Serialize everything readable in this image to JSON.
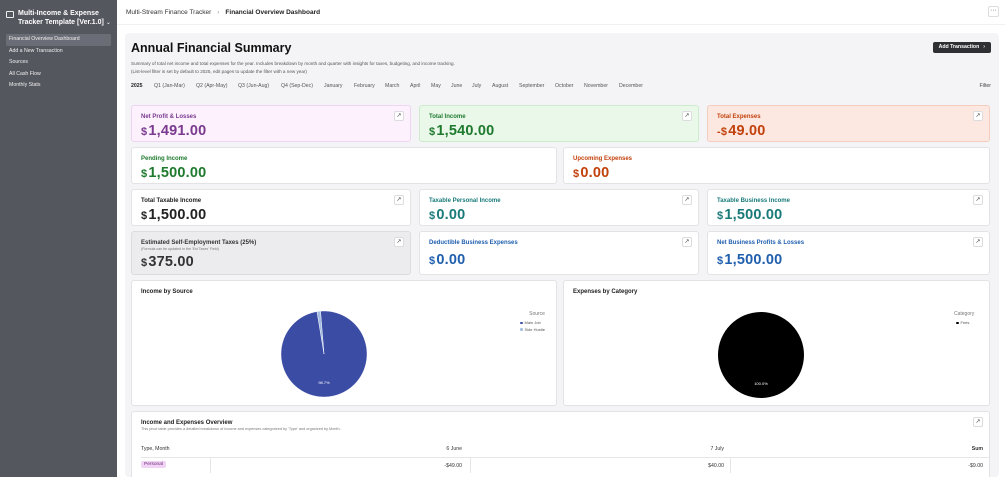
{
  "sidebar": {
    "workspace_title": "Multi-Income & Expense Tracker Template [Ver.1.0]",
    "chevron": "⌄",
    "items": [
      {
        "label": "Financial Overview Dashboard",
        "active": true
      },
      {
        "label": "Add a New Transaction",
        "active": false
      },
      {
        "label": "Sources",
        "active": false
      },
      {
        "label": "All Cash Flow",
        "active": false
      },
      {
        "label": "Monthly Stats",
        "active": false
      }
    ]
  },
  "topbar": {
    "breadcrumb_parent": "Multi-Stream Finance Tracker",
    "breadcrumb_sep": "›",
    "breadcrumb_current": "Financial Overview Dashboard",
    "more_icon": "···"
  },
  "page": {
    "title": "Annual Financial Summary",
    "add_button": "Add Transaction",
    "add_button_arrow": "›",
    "description": "Summary of total net income and total expenses for the year. Includes breakdown by month and quarter with insights for taxes, budgeting, and income tracking.",
    "note": "(List-level filter is set by default to 2025, edit pages to update the filter with a new year)"
  },
  "filters": {
    "items": [
      "2025",
      "Q1 (Jan-Mar)",
      "Q2 (Apr-May)",
      "Q3 (Jun-Aug)",
      "Q4 (Sep-Dec)",
      "January",
      "February",
      "March",
      "April",
      "May",
      "June",
      "July",
      "August",
      "September",
      "October",
      "November",
      "December"
    ],
    "active_index": 0,
    "filter_label": "Filter"
  },
  "metrics": {
    "net_profit": {
      "label": "Net Profit & Losses",
      "prefix": "$",
      "value": "1,491.00",
      "color": "#7b3a8f"
    },
    "total_income": {
      "label": "Total Income",
      "prefix": "$",
      "value": "1,540.00",
      "color": "#1e7a2e"
    },
    "total_expenses": {
      "label": "Total Expenses",
      "prefix": "-$",
      "value": "49.00",
      "color": "#c2410c"
    },
    "pending_income": {
      "label": "Pending Income",
      "prefix": "$",
      "value": "1,500.00",
      "color": "#1e7a2e"
    },
    "upcoming_expenses": {
      "label": "Upcoming Expenses",
      "prefix": "$",
      "value": "0.00",
      "color": "#c2410c"
    },
    "total_taxable": {
      "label": "Total Taxable Income",
      "prefix": "$",
      "value": "1,500.00",
      "color": "#222222"
    },
    "taxable_personal": {
      "label": "Taxable Personal Income",
      "prefix": "$",
      "value": "0.00",
      "color": "#1a7a7a"
    },
    "taxable_business": {
      "label": "Taxable Business Income",
      "prefix": "$",
      "value": "1,500.00",
      "color": "#1a7a7a"
    },
    "self_employment_tax": {
      "label": "Estimated Self-Employment Taxes (25%)",
      "sublabel": "(Formula can be updated in the 'Est Taxes' Field)",
      "prefix": "$",
      "value": "375.00",
      "color": "#333333"
    },
    "deductible_expenses": {
      "label": "Deductible Business Expenses",
      "prefix": "$",
      "value": "0.00",
      "color": "#1f5fae"
    },
    "net_business": {
      "label": "Net Business Profits & Losses",
      "prefix": "$",
      "value": "1,500.00",
      "color": "#1f5fae"
    },
    "link_icon": "↗"
  },
  "income_chart": {
    "title": "Income by Source",
    "legend_title": "Source",
    "legend": [
      "Main Job",
      "Side Hustle"
    ],
    "center_label": "98.7%"
  },
  "expense_chart": {
    "title": "Expenses by Category",
    "legend_title": "Category",
    "legend": [
      "Fees"
    ],
    "center_label": "100.0%"
  },
  "chart_data": [
    {
      "type": "pie",
      "title": "Income by Source",
      "legend_title": "Source",
      "categories": [
        "Main Job",
        "Side Hustle"
      ],
      "values": [
        98.7,
        1.3
      ],
      "colors": [
        "#3a4ca3",
        "#a3bde2"
      ]
    },
    {
      "type": "pie",
      "title": "Expenses by Category",
      "legend_title": "Category",
      "categories": [
        "Fees"
      ],
      "values": [
        100.0
      ],
      "colors": [
        "#000000"
      ]
    }
  ],
  "pivot": {
    "title": "Income and Expenses Overview",
    "subtitle": "This pivot table provides a detailed breakdown of income and expenses categorized by 'Type' and organized by Month.",
    "columns": [
      "Type, Month",
      "6 June",
      "7 July",
      "Sum"
    ],
    "rows": [
      {
        "type": "Personal",
        "cells": [
          "-$49.00",
          "$40.00",
          "-$9.00"
        ]
      }
    ]
  }
}
